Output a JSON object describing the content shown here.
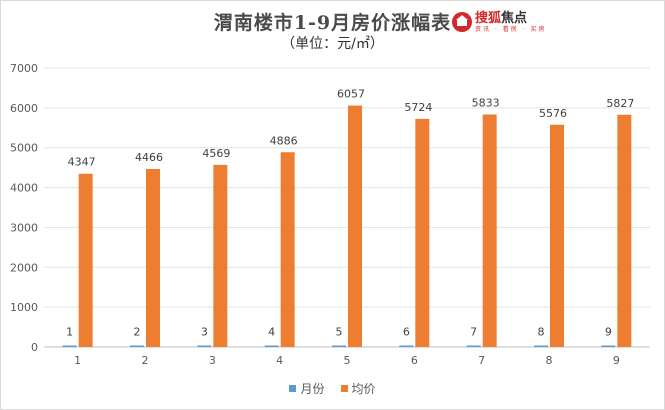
{
  "chart_data": {
    "type": "bar",
    "title": "渭南楼市1-9月房价涨幅表",
    "subtitle": "（单位：元/㎡）",
    "categories": [
      "1",
      "2",
      "3",
      "4",
      "5",
      "6",
      "7",
      "8",
      "9"
    ],
    "series": [
      {
        "name": "月份",
        "values": [
          1,
          2,
          3,
          4,
          5,
          6,
          7,
          8,
          9
        ],
        "color": "#5b9bd5"
      },
      {
        "name": "均价",
        "values": [
          4347,
          4466,
          4569,
          4886,
          6057,
          5724,
          5833,
          5576,
          5827
        ],
        "color": "#ed7d31"
      }
    ],
    "y_ticks": [
      "0",
      "1000",
      "2000",
      "3000",
      "4000",
      "5000",
      "6000",
      "7000"
    ],
    "ylim": [
      0,
      7000
    ],
    "grid": true,
    "legend_position": "bottom"
  },
  "logo": {
    "name_red": "搜狐",
    "name_dark": "焦点",
    "tagline": "资讯 · 看房 · 买房"
  }
}
